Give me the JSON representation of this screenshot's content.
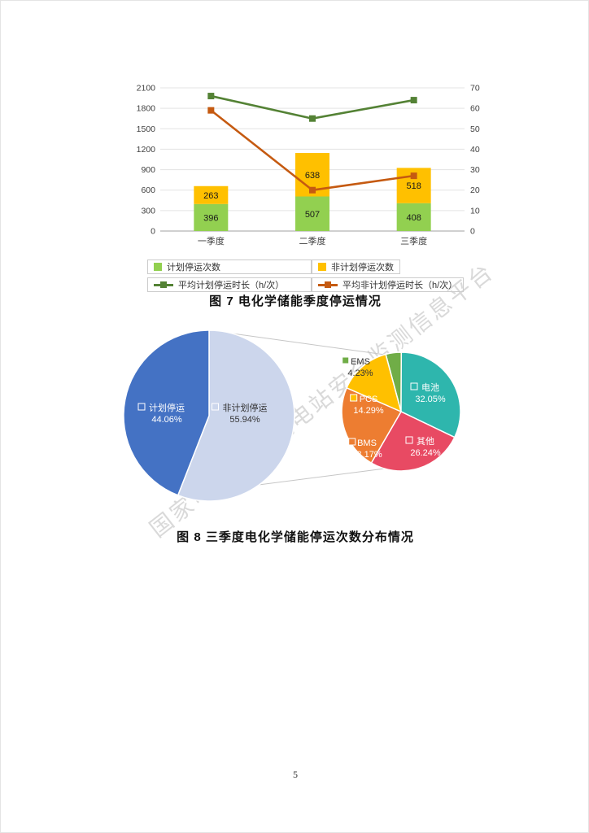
{
  "page": {
    "number": "5"
  },
  "watermark": {
    "text": "国家电化学储能电站安全监测信息平台"
  },
  "chart_data": [
    {
      "type": "bar",
      "subtype": "stacked-column-with-lines",
      "caption": "图 7 电化学储能季度停运情况",
      "categories": [
        "一季度",
        "二季度",
        "三季度"
      ],
      "bar_series": [
        {
          "name": "计划停运次数",
          "color": "#92d050",
          "values": [
            396,
            507,
            408
          ]
        },
        {
          "name": "非计划停运次数",
          "color": "#ffc000",
          "values": [
            263,
            638,
            518
          ]
        }
      ],
      "line_series": [
        {
          "name": "平均计划停运时长（h/次）",
          "color": "#548235",
          "values": [
            66,
            55,
            64
          ]
        },
        {
          "name": "平均非计划停运时长（h/次）",
          "color": "#c55a11",
          "values": [
            59,
            20,
            27
          ]
        }
      ],
      "left_axis": {
        "min": 0,
        "max": 2100,
        "step": 300
      },
      "right_axis": {
        "min": 0,
        "max": 70,
        "step": 10
      },
      "grid": true,
      "legend_position": "bottom"
    },
    {
      "type": "pie",
      "subtype": "pie-of-pie",
      "caption": "图 8 三季度电化学储能停运次数分布情况",
      "primary_pie": {
        "start_angle": 0,
        "slices": [
          {
            "label": "非计划停运",
            "value": 55.94,
            "pct_label": "55.94%",
            "color": "#ccd6ec",
            "text_color": "#333333",
            "label_pos": [
              44,
              -6
            ]
          },
          {
            "label": "计划停运",
            "value": 44.06,
            "pct_label": "44.06%",
            "color": "#4472c4",
            "text_color": "#ffffff",
            "label_pos": [
              -52,
              -6
            ]
          }
        ]
      },
      "secondary_pie": {
        "start_angle": -15,
        "slices": [
          {
            "label": "EMS",
            "value": 4.23,
            "pct_label": "4.23%",
            "color": "#70ad47",
            "text_color": "#333333",
            "outside": true,
            "label_pos": [
              -50,
              -58
            ]
          },
          {
            "label": "电池",
            "value": 32.05,
            "pct_label": "32.05%",
            "color": "#2eb6ad",
            "text_color": "#ffffff",
            "label_pos": [
              36,
              -26
            ]
          },
          {
            "label": "其他",
            "value": 26.24,
            "pct_label": "26.24%",
            "color": "#e84a63",
            "text_color": "#ffffff",
            "label_pos": [
              30,
              40
            ]
          },
          {
            "label": "BMS",
            "value": 23.17,
            "pct_label": "23.17%",
            "color": "#ed7d31",
            "text_color": "#ffffff",
            "label_pos": [
              -42,
              42
            ]
          },
          {
            "label": "PCS",
            "value": 14.29,
            "pct_label": "14.29%",
            "color": "#ffc000",
            "text_color": "#ffffff",
            "label_pos": [
              -40,
              -12
            ]
          }
        ]
      }
    }
  ]
}
